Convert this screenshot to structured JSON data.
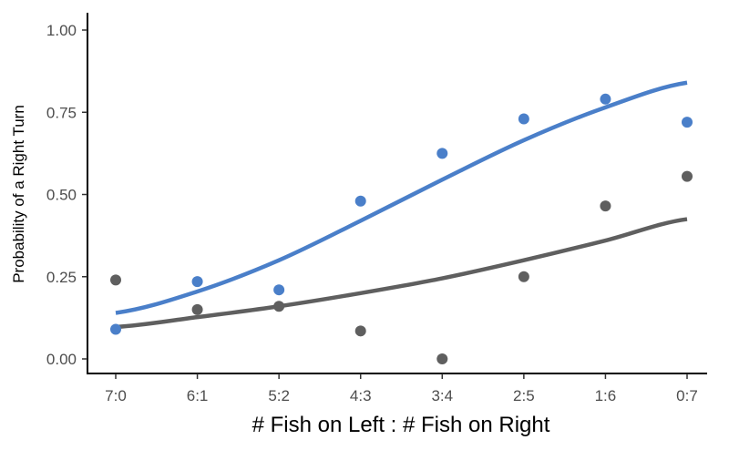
{
  "chart_data": {
    "type": "scatter",
    "title": "",
    "xlabel": "# Fish on Left : # Fish on Right",
    "ylabel": "Probability of a Right Turn",
    "categories": [
      "7:0",
      "6:1",
      "5:2",
      "4:3",
      "3:4",
      "2:5",
      "1:6",
      "0:7"
    ],
    "ylim": [
      0,
      1
    ],
    "y_ticks": [
      "0.00",
      "0.25",
      "0.50",
      "0.75",
      "1.00"
    ],
    "grid": false,
    "legend": "none",
    "series": [
      {
        "color": "#4a7fc9",
        "points": [
          0.09,
          0.235,
          0.21,
          0.48,
          0.625,
          0.73,
          0.79,
          0.72
        ],
        "fit": [
          0.14,
          0.205,
          0.3,
          0.42,
          0.545,
          0.665,
          0.765,
          0.84
        ]
      },
      {
        "color": "#5f5f5f",
        "points": [
          0.24,
          0.15,
          0.16,
          0.085,
          0.0,
          0.25,
          0.465,
          0.555
        ],
        "fit": [
          0.097,
          0.127,
          0.16,
          0.2,
          0.245,
          0.3,
          0.36,
          0.425
        ]
      }
    ]
  }
}
